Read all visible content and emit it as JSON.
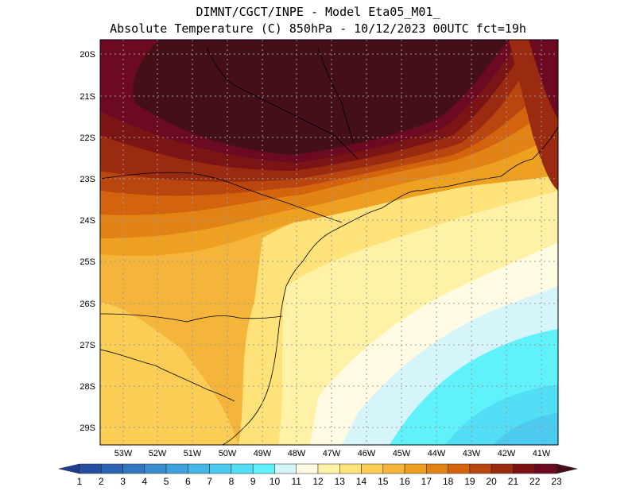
{
  "title_line1": "DIMNT/CGCT/INPE -  Model Eta05_M01_",
  "title_line2": "Absolute Temperature (C) 850hPa -  10/12/2023 00UTC fct=19h",
  "map": {
    "lat_labels": [
      "20S",
      "21S",
      "22S",
      "23S",
      "24S",
      "25S",
      "26S",
      "27S",
      "28S",
      "29S"
    ],
    "lon_labels": [
      "53W",
      "52W",
      "51W",
      "50W",
      "49W",
      "48W",
      "47W",
      "46W",
      "45W",
      "44W",
      "43W",
      "42W",
      "41W"
    ]
  },
  "colorbar": {
    "labels": [
      "1",
      "2",
      "3",
      "4",
      "5",
      "6",
      "7",
      "8",
      "9",
      "10",
      "11",
      "12",
      "13",
      "14",
      "15",
      "16",
      "17",
      "18",
      "19",
      "20",
      "21",
      "22",
      "23"
    ],
    "colors": [
      "#1f3d8f",
      "#26509f",
      "#2d63b0",
      "#3477c1",
      "#3a8ccf",
      "#40a1dc",
      "#46b6e6",
      "#4ccaef",
      "#52def4",
      "#5ff2fb",
      "#d6f5fb",
      "#fffbe3",
      "#fff2a6",
      "#ffe27a",
      "#fbcd55",
      "#f4b53a",
      "#eea021",
      "#e28316",
      "#d4630e",
      "#b9460e",
      "#9a2b10",
      "#7b1515",
      "#6b0a21",
      "#440f18"
    ]
  }
}
